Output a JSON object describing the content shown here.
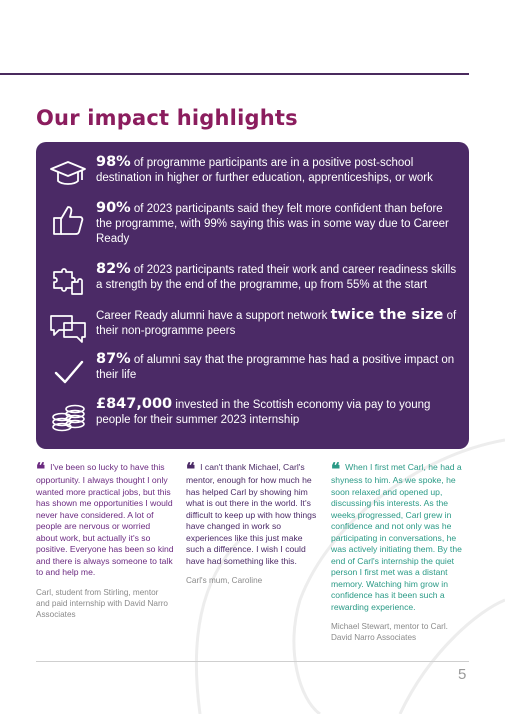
{
  "title": "Our impact highlights",
  "stats": [
    {
      "icon": "graduation-cap-icon",
      "highlight": "98%",
      "text": " of programme participants are in a positive post-school destination in higher or further education, apprenticeships, or work"
    },
    {
      "icon": "thumbs-up-icon",
      "highlight": "90%",
      "text": " of 2023 participants said they felt more confident than before the programme, with 99% saying this was in some way due to Career Ready"
    },
    {
      "icon": "puzzle-icon",
      "highlight": "82%",
      "text": " of 2023 participants rated their work and career readiness skills a strength by the end of the programme, up from 55% at the start"
    },
    {
      "icon": "chat-bubbles-icon",
      "pre": "Career Ready alumni have a support network ",
      "highlight": "twice the size",
      "text": " of their non-programme peers"
    },
    {
      "icon": "checkmark-icon",
      "highlight": "87%",
      "text": " of alumni say that the programme has had a positive impact on their life"
    },
    {
      "icon": "coins-icon",
      "highlight": "£847,000",
      "text": " invested in the Scottish economy via pay to young people for their summer 2023 internship"
    }
  ],
  "quotes": [
    {
      "text": "I've been so lucky to have this opportunity. I always thought I only wanted more practical jobs, but this has shown me opportunities I would never have considered. A lot of people are nervous or worried about work, but actually it's so positive. Everyone has been so kind and there is always someone to talk to and help me.",
      "attribution": "Carl, student from Stirling, mentor and paid internship with David Narro Associates"
    },
    {
      "text": "I can't thank Michael, Carl's mentor, enough for how much he has helped Carl by showing him what is out there in the world. It's difficult to keep up with how things have changed in work so experiences like this just make such a difference. I wish I could have had something like this.",
      "attribution": "Carl's mum, Caroline"
    },
    {
      "text": "When I first met Carl, he had a shyness to him. As we spoke, he soon relaxed and opened up, discussing his interests. As the weeks progressed, Carl grew in confidence and not only was he participating in conversations, he was actively initiating them. By the end of Carl's internship the quiet person I first met was a distant memory. Watching him grow in confidence has it been such a rewarding experience.",
      "attribution": "Michael Stewart, mentor to Carl. David Narro Associates"
    }
  ],
  "quote_mark": "❝",
  "page_number": "5",
  "colors": {
    "panel": "#4b2a66",
    "title": "#8b1d5e",
    "quote1": "#6b2a80",
    "quote2": "#4b2a66",
    "quote3": "#2a9a86"
  }
}
